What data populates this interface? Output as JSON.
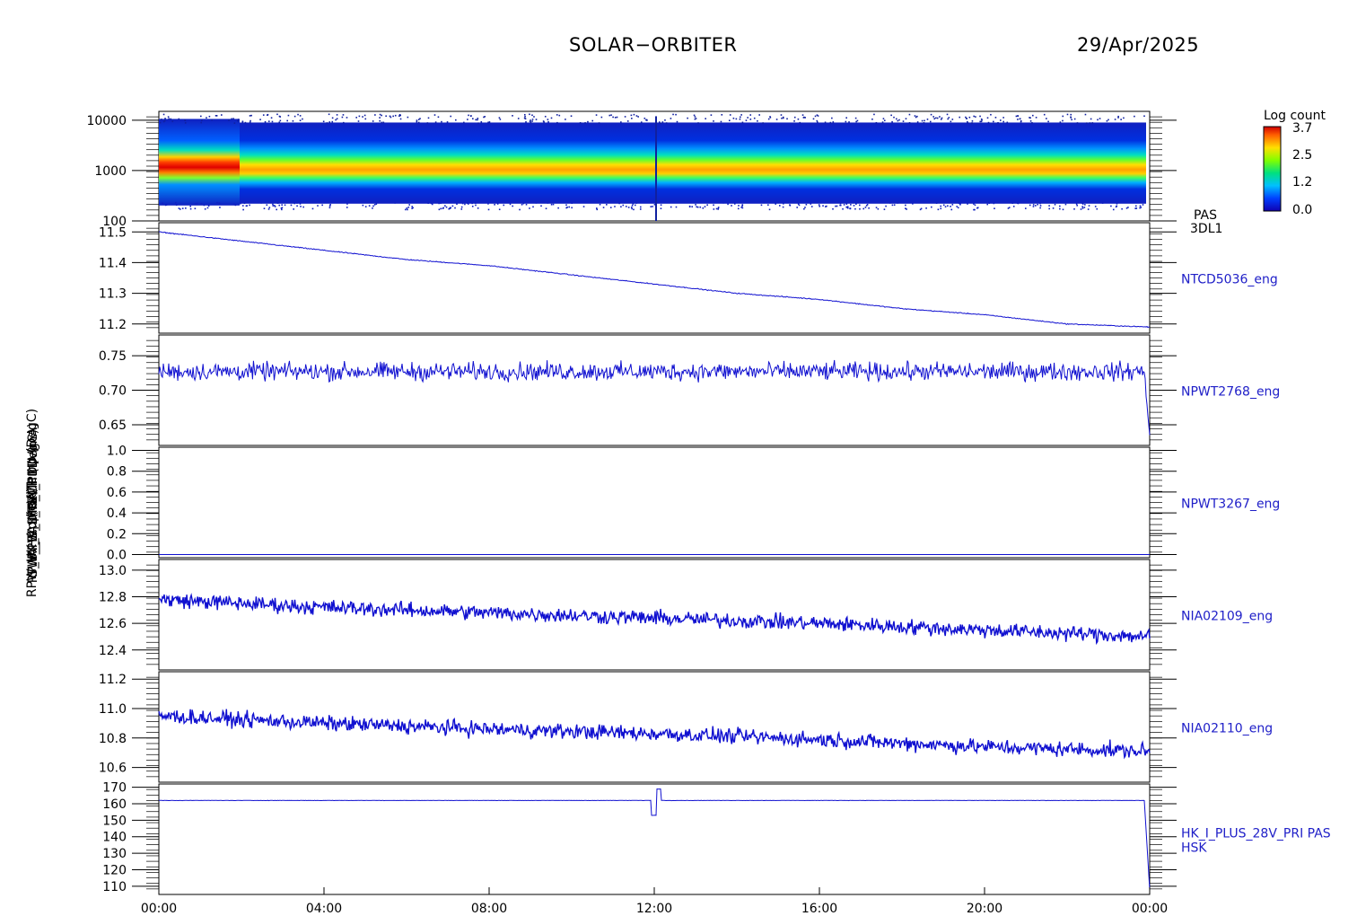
{
  "header": {
    "title": "SOLAR−ORBITER",
    "date": "29/Apr/2025"
  },
  "colors": {
    "trace": "#1010d0",
    "axis": "#000000",
    "label": "#2020c8"
  },
  "colorbar": {
    "title": "Log count",
    "ticks": [
      "3.7",
      "2.5",
      "1.2",
      "0.0"
    ]
  },
  "y_label_overlap": [
    "(eV)",
    "SWA_EAS_TEMP (DegC)",
    "RPW_HK_Approx Temp (DegC)",
    "RPW_LFR_CH1 (V)",
    "(mA)",
    "RPW_HK_IMON_PDU (mA)"
  ],
  "chart_data": [
    {
      "type": "heatmap",
      "title": "",
      "ylabel": "(eV)",
      "yscale": "log",
      "ylim": [
        100,
        15000
      ],
      "yticks": [
        "10000",
        "1000",
        "100"
      ],
      "right_label": [
        "PAS",
        "3DL1"
      ],
      "description_bands": [
        {
          "energy_center": 1000,
          "level": "high"
        },
        {
          "energy_low": 250,
          "energy_high": 9000,
          "level": "low"
        }
      ]
    },
    {
      "type": "line",
      "ylabel": "",
      "ylim": [
        11.17,
        11.53
      ],
      "yticks": [
        "11.5",
        "11.4",
        "11.3",
        "11.2"
      ],
      "right_label": "NTCD5036_eng",
      "x_hours": [
        0,
        2,
        4,
        6,
        8,
        10,
        12,
        14,
        16,
        18,
        20,
        22,
        24
      ],
      "values": [
        11.5,
        11.47,
        11.44,
        11.41,
        11.39,
        11.36,
        11.33,
        11.3,
        11.28,
        11.25,
        11.23,
        11.2,
        11.19
      ]
    },
    {
      "type": "line",
      "ylabel": "",
      "ylim": [
        0.62,
        0.78
      ],
      "yticks": [
        "0.75",
        "0.70",
        "0.65"
      ],
      "right_label": "NPWT2768_eng",
      "mean": 0.727,
      "noise": 0.012,
      "end_drop": 0.635
    },
    {
      "type": "line",
      "ylabel": "",
      "ylim": [
        -0.03,
        1.03
      ],
      "yticks": [
        "1.0",
        "0.8",
        "0.6",
        "0.4",
        "0.2",
        "0.0"
      ],
      "right_label": "NPWT3267_eng",
      "mean": 0.0
    },
    {
      "type": "line",
      "ylabel": "",
      "ylim": [
        12.25,
        13.08
      ],
      "yticks": [
        "13.0",
        "12.8",
        "12.6",
        "12.4"
      ],
      "right_label": "NIA02109_eng",
      "x_hours": [
        0,
        4,
        8,
        12,
        16,
        20,
        24
      ],
      "values": [
        12.78,
        12.72,
        12.68,
        12.64,
        12.6,
        12.55,
        12.5
      ]
    },
    {
      "type": "line",
      "ylabel": "",
      "ylim": [
        10.5,
        11.25
      ],
      "yticks": [
        "11.2",
        "11.0",
        "10.8",
        "10.6"
      ],
      "right_label": "NIA02110_eng",
      "x_hours": [
        0,
        4,
        8,
        12,
        16,
        20,
        24
      ],
      "values": [
        10.95,
        10.9,
        10.86,
        10.83,
        10.79,
        10.74,
        10.71
      ]
    },
    {
      "type": "line",
      "ylabel": "",
      "ylim": [
        105,
        172
      ],
      "yticks": [
        "170",
        "160",
        "150",
        "140",
        "130",
        "120",
        "110"
      ],
      "right_label": [
        "HK_I_PLUS_28V_PRI PAS",
        "HSK"
      ],
      "mean": 162,
      "end_drop": 108
    }
  ],
  "x_axis": {
    "ticks": [
      "00:00",
      "04:00",
      "08:00",
      "12:00",
      "16:00",
      "20:00",
      "00:00"
    ]
  }
}
